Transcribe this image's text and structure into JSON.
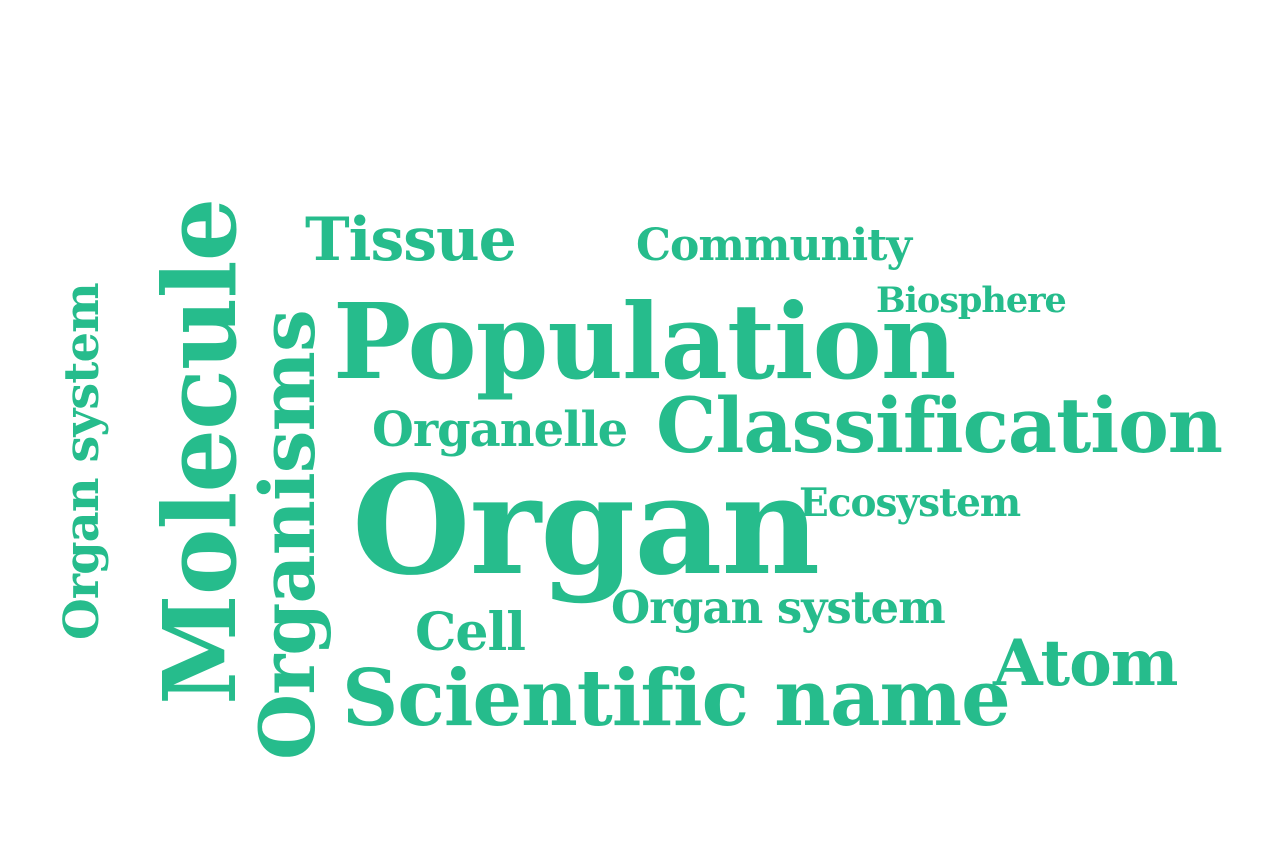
{
  "style": {
    "word_color": "#26bc8c",
    "background": "#ffffff"
  },
  "words": {
    "tissue": "Tissue",
    "community": "Community",
    "biosphere": "Biosphere",
    "population": "Population",
    "organelle": "Organelle",
    "classification": "Classification",
    "organ": "Organ",
    "ecosystem": "Ecosystem",
    "organ_system_horizontal": "Organ system",
    "cell": "Cell",
    "atom": "Atom",
    "scientific_name": "Scientific name",
    "organ_system_vertical": "Organ system",
    "molecule": "Molecule",
    "organisms": "Organisms"
  }
}
